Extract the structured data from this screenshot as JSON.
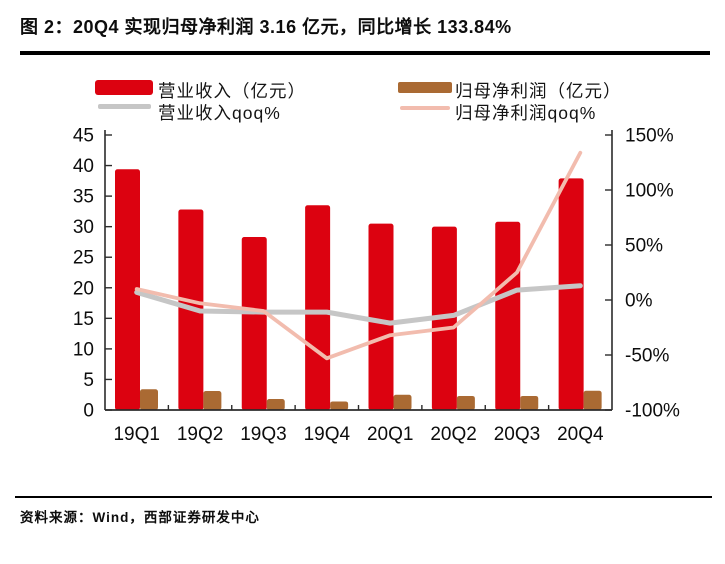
{
  "title": {
    "text": "图 2：20Q4 实现归母净利润 3.16 亿元，同比增长 133.84%"
  },
  "footer": {
    "text": "资料来源：Wind，西部证券研发中心"
  },
  "colors": {
    "revenue_bar": "#dc0210",
    "net_profit_bar": "#aa6a33",
    "revenue_line": "#c6c6c6",
    "net_profit_line": "#f2bcae",
    "axis": "#2b2b2b",
    "text": "#0d0d0d"
  },
  "chart_data": {
    "type": "bar",
    "subtype": "bar-line-combo",
    "title": "20Q4 实现归母净利润 3.16 亿元，同比增长 133.84%",
    "categories": [
      "19Q1",
      "19Q2",
      "19Q3",
      "19Q4",
      "20Q1",
      "20Q2",
      "20Q3",
      "20Q4"
    ],
    "series": [
      {
        "name": "营业收入（亿元）",
        "kind": "bar",
        "axis": "left",
        "color": "#dc0210",
        "values": [
          39.4,
          32.8,
          28.3,
          33.5,
          30.5,
          30.0,
          30.8,
          37.9
        ]
      },
      {
        "name": "归母净利润（亿元）",
        "kind": "bar",
        "axis": "left",
        "color": "#aa6a33",
        "values": [
          3.4,
          3.1,
          1.8,
          1.4,
          2.5,
          2.3,
          2.3,
          3.16
        ]
      },
      {
        "name": "营业收入qoq%",
        "kind": "line",
        "axis": "right",
        "color": "#c6c6c6",
        "values": [
          7,
          -10,
          -11,
          -11,
          -21,
          -14,
          9,
          13
        ]
      },
      {
        "name": "归母净利润qoq%",
        "kind": "line",
        "axis": "right",
        "color": "#f2bcae",
        "values": [
          10,
          -3,
          -10,
          -53,
          -32,
          -25,
          25,
          133.84
        ]
      }
    ],
    "left_axis": {
      "min": 0,
      "max": 45,
      "step": 5,
      "suffix": ""
    },
    "right_axis": {
      "min": -100,
      "max": 150,
      "step": 50,
      "suffix": "%"
    },
    "grid": false,
    "legend_position": "top"
  }
}
